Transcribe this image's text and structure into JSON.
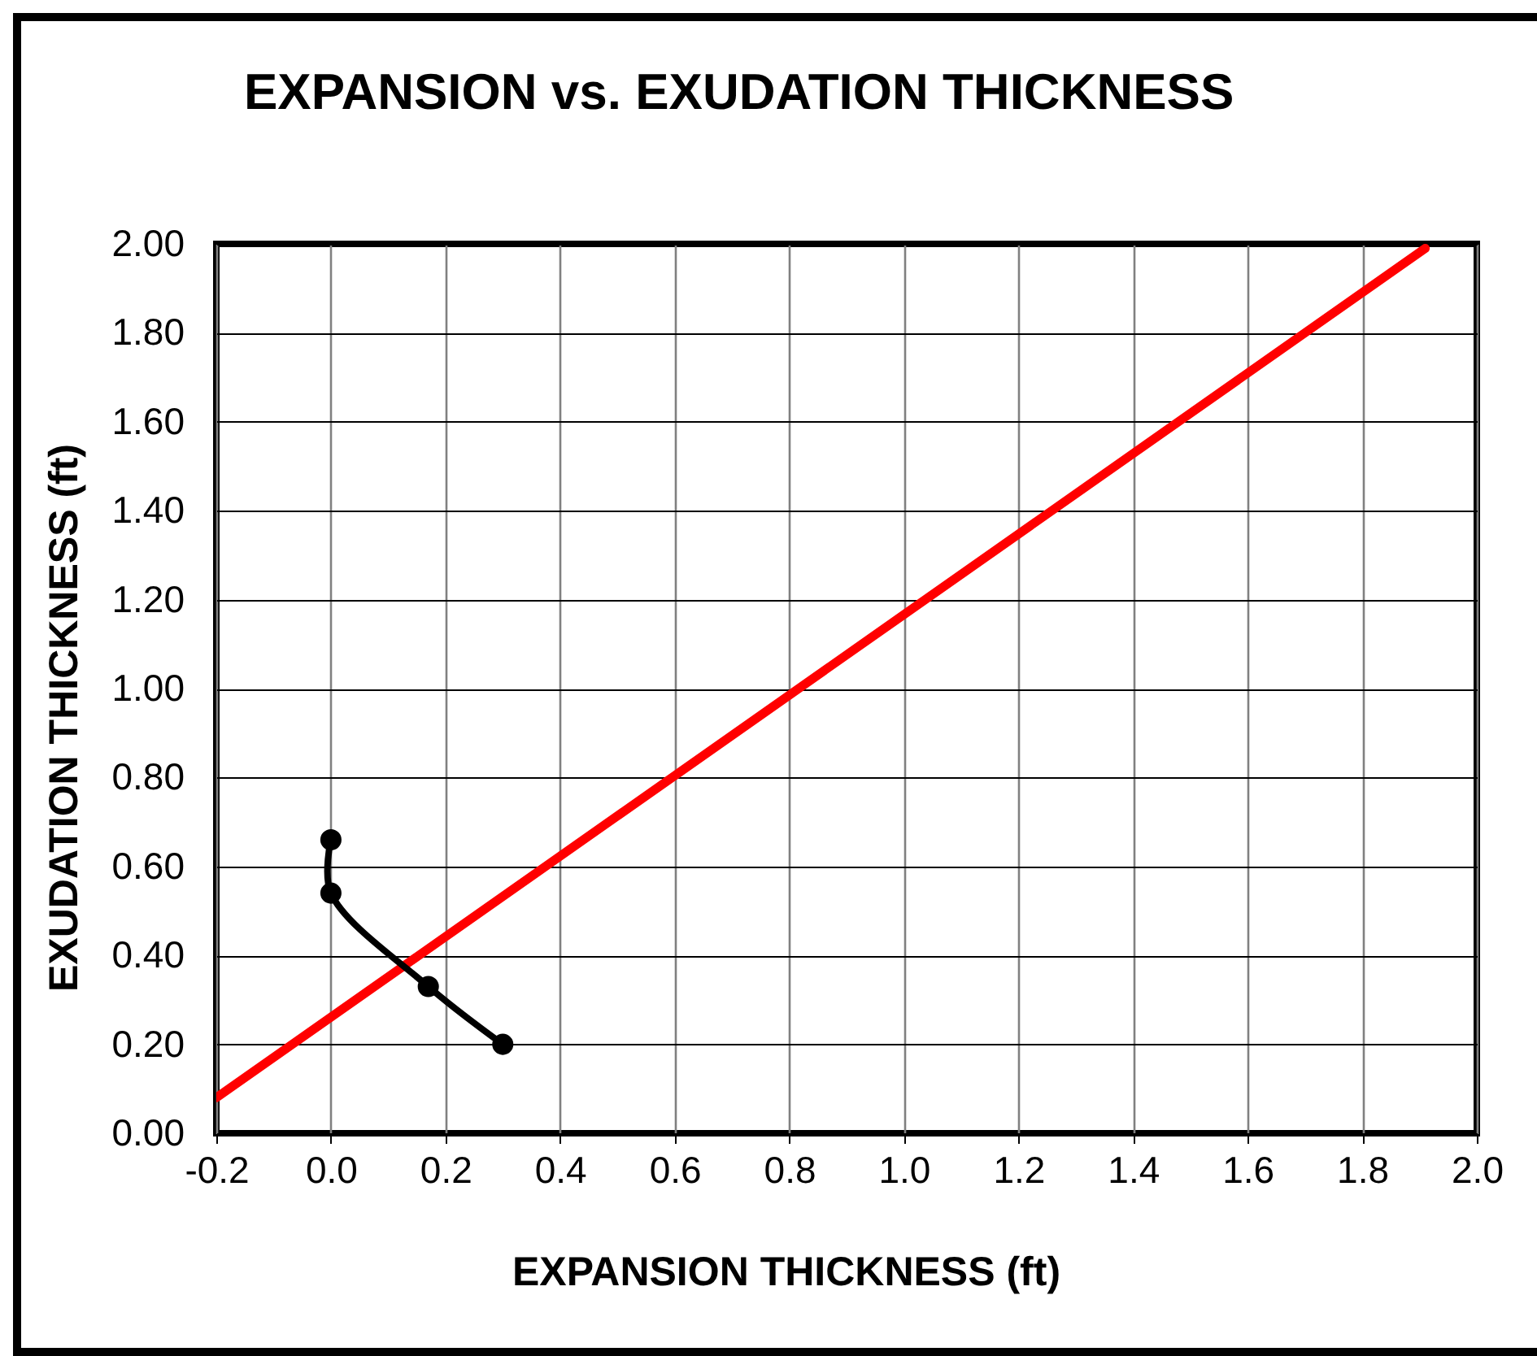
{
  "chart_data": {
    "type": "line",
    "title": "EXPANSION vs. EXUDATION THICKNESS",
    "xlabel": "EXPANSION THICKNESS (ft)",
    "ylabel": "EXUDATION THICKNESS (ft)",
    "xlim": [
      -0.2,
      2.0
    ],
    "ylim": [
      0,
      2
    ],
    "xticks": [
      -0.2,
      {
        "value": 0,
        "label": "0.0"
      },
      0.2,
      0.4,
      0.6,
      0.8,
      {
        "value": 1,
        "label": "1.0"
      },
      1.2,
      1.4,
      1.6,
      1.8,
      {
        "value": 2,
        "label": "2.0"
      }
    ],
    "yticks": [
      {
        "value": 0,
        "label": "0.00"
      },
      {
        "value": 0.2,
        "label": "0.20"
      },
      {
        "value": 0.4,
        "label": "0.40"
      },
      {
        "value": 0.6,
        "label": "0.60"
      },
      {
        "value": 0.8,
        "label": "0.80"
      },
      {
        "value": 1,
        "label": "1.00"
      },
      {
        "value": 1.2,
        "label": "1.20"
      },
      {
        "value": 1.4,
        "label": "1.40"
      },
      {
        "value": 1.6,
        "label": "1.60"
      },
      {
        "value": 1.8,
        "label": "1.80"
      },
      {
        "value": 2,
        "label": "2.00"
      }
    ],
    "grid": true,
    "series": [
      {
        "color": "#ff0000",
        "x": [
          -0.2,
          1.91
        ],
        "values": [
          0.08,
          1.99
        ],
        "marker": "none"
      },
      {
        "color": "#000000",
        "x": [
          0,
          0,
          0.17,
          0.3
        ],
        "values": [
          0.66,
          0.54,
          0.33,
          0.2
        ],
        "marker": "circle"
      }
    ]
  }
}
